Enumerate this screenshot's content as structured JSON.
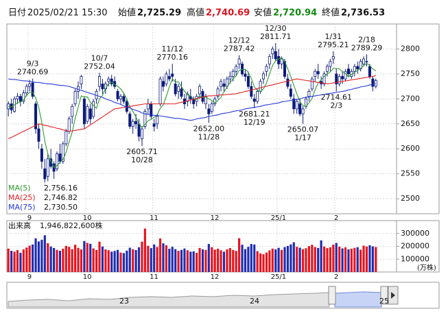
{
  "chart_data": {
    "type": "candlestick",
    "header": {
      "date_label": "日付",
      "datetime": "2025/02/21 15:30",
      "open_label": "始値",
      "open": "2,725.29",
      "high_label": "高値",
      "high": "2,740.69",
      "low_label": "安値",
      "low": "2,720.94",
      "close_label": "終値",
      "close": "2,736.53"
    },
    "categories": [
      null,
      null,
      null,
      null,
      null,
      null,
      null,
      "9",
      null,
      null,
      null,
      null,
      null,
      null,
      null,
      null,
      null,
      null,
      null,
      null,
      null,
      null,
      null,
      null,
      null,
      null,
      "10",
      null,
      null,
      null,
      null,
      null,
      null,
      null,
      null,
      null,
      null,
      null,
      null,
      null,
      null,
      null,
      null,
      null,
      null,
      null,
      null,
      null,
      "11",
      null,
      null,
      null,
      null,
      null,
      null,
      null,
      null,
      null,
      null,
      null,
      null,
      null,
      null,
      null,
      null,
      null,
      null,
      null,
      "12",
      null,
      null,
      null,
      null,
      null,
      null,
      null,
      null,
      null,
      null,
      null,
      null,
      null,
      null,
      null,
      null,
      null,
      null,
      null,
      null,
      "25/1",
      null,
      null,
      null,
      null,
      null,
      null,
      null,
      null,
      null,
      null,
      null,
      null,
      null,
      null,
      null,
      null,
      null,
      null,
      "2",
      null,
      null,
      null,
      null,
      null,
      null,
      null,
      null,
      null,
      null,
      null,
      null,
      null
    ],
    "series": [
      {
        "open": [
          2680,
          2690,
          2675,
          2700,
          2705,
          2695,
          2712,
          2725,
          2732,
          2690,
          2640,
          2600,
          2560,
          2545,
          2580,
          2570,
          2560,
          2590,
          2575,
          2610,
          2635,
          2665,
          2690,
          2715,
          2730,
          2700,
          2655,
          2680,
          2665,
          2700,
          2725,
          2730,
          2720,
          2735,
          2740,
          2735,
          2715,
          2700,
          2705,
          2695,
          2670,
          2645,
          2655,
          2650,
          2620,
          2645,
          2680,
          2690,
          2650,
          2650,
          2690,
          2735,
          2730,
          2745,
          2750,
          2730,
          2715,
          2720,
          2700,
          2695,
          2705,
          2700,
          2695,
          2710,
          2715,
          2690,
          2680,
          2675,
          2690,
          2705,
          2725,
          2730,
          2725,
          2740,
          2745,
          2755,
          2770,
          2770,
          2750,
          2745,
          2725,
          2700,
          2695,
          2715,
          2740,
          2755,
          2770,
          2790,
          2795,
          2785,
          2770,
          2775,
          2740,
          2720,
          2700,
          2680,
          2690,
          2670,
          2685,
          2705,
          2720,
          2745,
          2755,
          2735,
          2730,
          2755,
          2765,
          2780,
          2750,
          2730,
          2745,
          2740,
          2760,
          2745,
          2755,
          2765,
          2760,
          2770,
          2775,
          2765,
          2740,
          2725.29
        ],
        "high": [
          2695,
          2700,
          2705,
          2712,
          2710,
          2718,
          2730,
          2738,
          2740.69,
          2695,
          2650,
          2610,
          2580,
          2590,
          2600,
          2575,
          2595,
          2610,
          2615,
          2640,
          2665,
          2690,
          2720,
          2735,
          2748,
          2705,
          2690,
          2690,
          2700,
          2720,
          2752.04,
          2740,
          2735,
          2745,
          2748,
          2745,
          2720,
          2710,
          2712,
          2700,
          2675,
          2660,
          2670,
          2660,
          2645,
          2680,
          2700,
          2695,
          2660,
          2670,
          2745,
          2745,
          2755,
          2760,
          2770.16,
          2740,
          2730,
          2735,
          2710,
          2715,
          2720,
          2705,
          2710,
          2730,
          2720,
          2710,
          2690,
          2695,
          2705,
          2725,
          2740,
          2740,
          2745,
          2755,
          2760,
          2770,
          2787.42,
          2775,
          2760,
          2755,
          2735,
          2710,
          2720,
          2740,
          2755,
          2770,
          2790,
          2805,
          2811.71,
          2800,
          2785,
          2780,
          2750,
          2730,
          2710,
          2700,
          2700,
          2685,
          2705,
          2720,
          2745,
          2760,
          2770,
          2745,
          2755,
          2770,
          2780,
          2795.21,
          2760,
          2750,
          2755,
          2760,
          2770,
          2760,
          2770,
          2775,
          2780,
          2785,
          2789.29,
          2770,
          2745,
          2740.69
        ],
        "low": [
          2665,
          2670,
          2672,
          2690,
          2685,
          2690,
          2705,
          2715,
          2700,
          2630,
          2600,
          2560,
          2525,
          2535,
          2560,
          2540,
          2555,
          2570,
          2570,
          2605,
          2630,
          2650,
          2685,
          2700,
          2720,
          2640,
          2650,
          2650,
          2660,
          2690,
          2715,
          2710,
          2710,
          2725,
          2725,
          2720,
          2695,
          2690,
          2690,
          2670,
          2640,
          2630,
          2640,
          2615,
          2605.71,
          2640,
          2670,
          2660,
          2635,
          2640,
          2685,
          2715,
          2725,
          2735,
          2735,
          2705,
          2700,
          2700,
          2680,
          2685,
          2690,
          2680,
          2685,
          2700,
          2690,
          2680,
          2652,
          2670,
          2685,
          2700,
          2715,
          2715,
          2720,
          2730,
          2735,
          2745,
          2760,
          2745,
          2735,
          2720,
          2700,
          2681.21,
          2690,
          2710,
          2730,
          2745,
          2760,
          2780,
          2775,
          2760,
          2760,
          2740,
          2720,
          2700,
          2670,
          2670,
          2665,
          2650.07,
          2680,
          2695,
          2715,
          2735,
          2740,
          2720,
          2725,
          2745,
          2755,
          2770,
          2714.61,
          2725,
          2730,
          2735,
          2745,
          2740,
          2745,
          2750,
          2755,
          2765,
          2765,
          2740,
          2715,
          2720.94
        ],
        "close": [
          2690,
          2678,
          2700,
          2705,
          2695,
          2712,
          2725,
          2730,
          2705,
          2640,
          2615,
          2575,
          2540,
          2580,
          2565,
          2555,
          2590,
          2575,
          2610,
          2635,
          2660,
          2685,
          2715,
          2725,
          2745,
          2650,
          2685,
          2660,
          2695,
          2715,
          2745,
          2720,
          2730,
          2740,
          2730,
          2725,
          2700,
          2705,
          2695,
          2675,
          2645,
          2655,
          2650,
          2625,
          2640,
          2675,
          2690,
          2665,
          2645,
          2665,
          2740,
          2725,
          2750,
          2740,
          2745,
          2710,
          2725,
          2705,
          2690,
          2710,
          2700,
          2690,
          2705,
          2725,
          2695,
          2705,
          2670,
          2690,
          2700,
          2720,
          2735,
          2725,
          2740,
          2745,
          2755,
          2765,
          2780,
          2750,
          2745,
          2725,
          2705,
          2695,
          2715,
          2735,
          2750,
          2765,
          2785,
          2800,
          2780,
          2770,
          2780,
          2745,
          2725,
          2705,
          2680,
          2695,
          2670,
          2680,
          2700,
          2715,
          2740,
          2755,
          2750,
          2730,
          2750,
          2765,
          2775,
          2785,
          2730,
          2745,
          2740,
          2755,
          2750,
          2755,
          2765,
          2760,
          2775,
          2780,
          2775,
          2745,
          2725,
          2736.53
        ],
        "up_color": "#ffffff",
        "down_color": "#0b1a7a",
        "stroke": "#0b1a7a"
      }
    ],
    "moving_averages": [
      {
        "name": "MA(5)",
        "color": "#2e9b2e",
        "value_label": "2,756.16",
        "values": [
          2685,
          2684,
          2688,
          2692,
          2694,
          2698,
          2707,
          2713,
          2713,
          2702,
          2683,
          2653,
          2615,
          2590,
          2575,
          2563,
          2566,
          2573,
          2579,
          2593,
          2614,
          2633,
          2661,
          2684,
          2706,
          2704,
          2704,
          2693,
          2687,
          2681,
          2700,
          2707,
          2721,
          2730,
          2733,
          2729,
          2725,
          2720,
          2711,
          2700,
          2684,
          2675,
          2664,
          2650,
          2643,
          2649,
          2656,
          2659,
          2663,
          2668,
          2681,
          2688,
          2705,
          2724,
          2740,
          2734,
          2734,
          2725,
          2715,
          2708,
          2706,
          2699,
          2699,
          2706,
          2703,
          2704,
          2700,
          2697,
          2692,
          2697,
          2703,
          2714,
          2724,
          2733,
          2740,
          2746,
          2757,
          2759,
          2759,
          2753,
          2741,
          2724,
          2717,
          2715,
          2720,
          2732,
          2750,
          2767,
          2776,
          2780,
          2783,
          2775,
          2760,
          2745,
          2727,
          2710,
          2695,
          2686,
          2685,
          2692,
          2701,
          2718,
          2732,
          2738,
          2745,
          2750,
          2754,
          2761,
          2761,
          2760,
          2755,
          2751,
          2744,
          2749,
          2753,
          2757,
          2761,
          2767,
          2771,
          2767,
          2760,
          2756.16
        ]
      },
      {
        "name": "MA(25)",
        "color": "#e02020",
        "value_label": "2,746.82",
        "values": [
          2620,
          2623,
          2626,
          2629,
          2632,
          2635,
          2638,
          2641,
          2644,
          2647,
          2650,
          2649,
          2647,
          2646,
          2644,
          2643,
          2641,
          2640,
          2638,
          2637,
          2635,
          2636,
          2637,
          2638,
          2639,
          2640,
          2644,
          2648,
          2652,
          2656,
          2660,
          2664,
          2668,
          2672,
          2676,
          2680,
          2681,
          2682,
          2683,
          2684,
          2685,
          2686,
          2687,
          2688,
          2689,
          2690,
          2690,
          2690,
          2690,
          2690,
          2690,
          2690,
          2690,
          2690,
          2690,
          2690,
          2692,
          2693,
          2695,
          2696,
          2698,
          2699,
          2701,
          2702,
          2704,
          2705,
          2706,
          2706,
          2707,
          2707,
          2708,
          2708,
          2709,
          2709,
          2710,
          2710,
          2712,
          2713,
          2715,
          2716,
          2718,
          2719,
          2721,
          2722,
          2724,
          2725,
          2727,
          2728,
          2730,
          2731,
          2733,
          2734,
          2736,
          2737,
          2739,
          2740,
          2739,
          2738,
          2737,
          2736,
          2735,
          2734,
          2733,
          2732,
          2731,
          2730,
          2731,
          2732,
          2733,
          2734,
          2735,
          2736,
          2737,
          2738,
          2739,
          2740,
          2741,
          2742,
          2743,
          2744,
          2745,
          2746.82
        ]
      },
      {
        "name": "MA(75)",
        "color": "#2438d8",
        "value_label": "2,730.50",
        "values": [
          2740,
          2739,
          2739,
          2738,
          2737,
          2736,
          2736,
          2735,
          2734,
          2733,
          2733,
          2732,
          2731,
          2730,
          2730,
          2729,
          2728,
          2727,
          2727,
          2726,
          2725,
          2723,
          2721,
          2719,
          2717,
          2715,
          2713,
          2711,
          2709,
          2707,
          2705,
          2703,
          2700,
          2698,
          2696,
          2693,
          2691,
          2689,
          2686,
          2684,
          2682,
          2679,
          2677,
          2675,
          2672,
          2670,
          2669,
          2668,
          2667,
          2667,
          2666,
          2665,
          2664,
          2663,
          2662,
          2661,
          2661,
          2660,
          2659,
          2658,
          2657,
          2658,
          2660,
          2661,
          2662,
          2663,
          2665,
          2666,
          2667,
          2668,
          2670,
          2671,
          2672,
          2673,
          2675,
          2676,
          2677,
          2678,
          2680,
          2681,
          2682,
          2683,
          2684,
          2685,
          2687,
          2688,
          2689,
          2690,
          2691,
          2692,
          2694,
          2695,
          2696,
          2697,
          2698,
          2699,
          2700,
          2702,
          2703,
          2704,
          2705,
          2706,
          2707,
          2708,
          2709,
          2710,
          2711,
          2712,
          2713,
          2714,
          2715,
          2716,
          2718,
          2719,
          2721,
          2722,
          2724,
          2725,
          2726,
          2728,
          2729,
          2730.5
        ]
      }
    ],
    "ylim": [
      2470,
      2850
    ],
    "yticks": [
      2500,
      2550,
      2600,
      2650,
      2700,
      2750,
      2800
    ],
    "grid": true,
    "annotations": [
      {
        "date": "9/3",
        "price": "2740.69"
      },
      {
        "date": "10/7",
        "price": "2752.04"
      },
      {
        "date": "10/28",
        "price": "2605.71"
      },
      {
        "date": "11/12",
        "price": "2770.16"
      },
      {
        "date": "11/28",
        "price": "2652.00"
      },
      {
        "date": "12/12",
        "price": "2787.42"
      },
      {
        "date": "12/19",
        "price": "2681.21"
      },
      {
        "date": "12/30",
        "price": "2811.71"
      },
      {
        "date": "1/17",
        "price": "2650.07"
      },
      {
        "date": "1/31",
        "price": "2795.21"
      },
      {
        "date": "2/3",
        "price": "2714.61"
      },
      {
        "date": "2/18",
        "price": "2789.29"
      }
    ],
    "volume": {
      "type": "bar",
      "title": "出来高",
      "total": "1,946,822,600株",
      "unit": "(万株)",
      "up_color": "#e8141e",
      "down_color": "#1f2db0",
      "values": [
        182000,
        165000,
        158000,
        170000,
        149000,
        176000,
        190000,
        205000,
        214000,
        262000,
        238000,
        251000,
        286000,
        224000,
        198000,
        187000,
        172000,
        165000,
        181000,
        203000,
        196000,
        178000,
        212000,
        188000,
        176000,
        241000,
        226000,
        219000,
        184000,
        171000,
        236000,
        198000,
        176000,
        169000,
        158000,
        164000,
        172000,
        151000,
        147000,
        166000,
        189000,
        178000,
        171000,
        192000,
        236000,
        338000,
        204000,
        186000,
        214000,
        195000,
        261000,
        223000,
        208000,
        181000,
        196000,
        178000,
        165000,
        172000,
        183000,
        169000,
        158000,
        161000,
        149000,
        187000,
        176000,
        172000,
        218000,
        193000,
        174000,
        181000,
        169000,
        158000,
        176000,
        186000,
        171000,
        164000,
        263000,
        212000,
        178000,
        196000,
        218000,
        214000,
        162000,
        145000,
        138000,
        151000,
        168000,
        182000,
        176000,
        188000,
        172000,
        194000,
        203000,
        215000,
        231000,
        196000,
        189000,
        178000,
        185000,
        201000,
        212000,
        194000,
        187000,
        246000,
        198000,
        186000,
        192000,
        213000,
        226000,
        197000,
        184000,
        192000,
        176000,
        181000,
        188000,
        193000,
        174000,
        205000,
        198000,
        208000,
        199000,
        194682
      ],
      "ylim": [
        0,
        400000
      ],
      "yticks": [
        100000,
        200000,
        300000
      ]
    },
    "navigator": {
      "labels": [
        "23",
        "24",
        "25"
      ]
    }
  }
}
